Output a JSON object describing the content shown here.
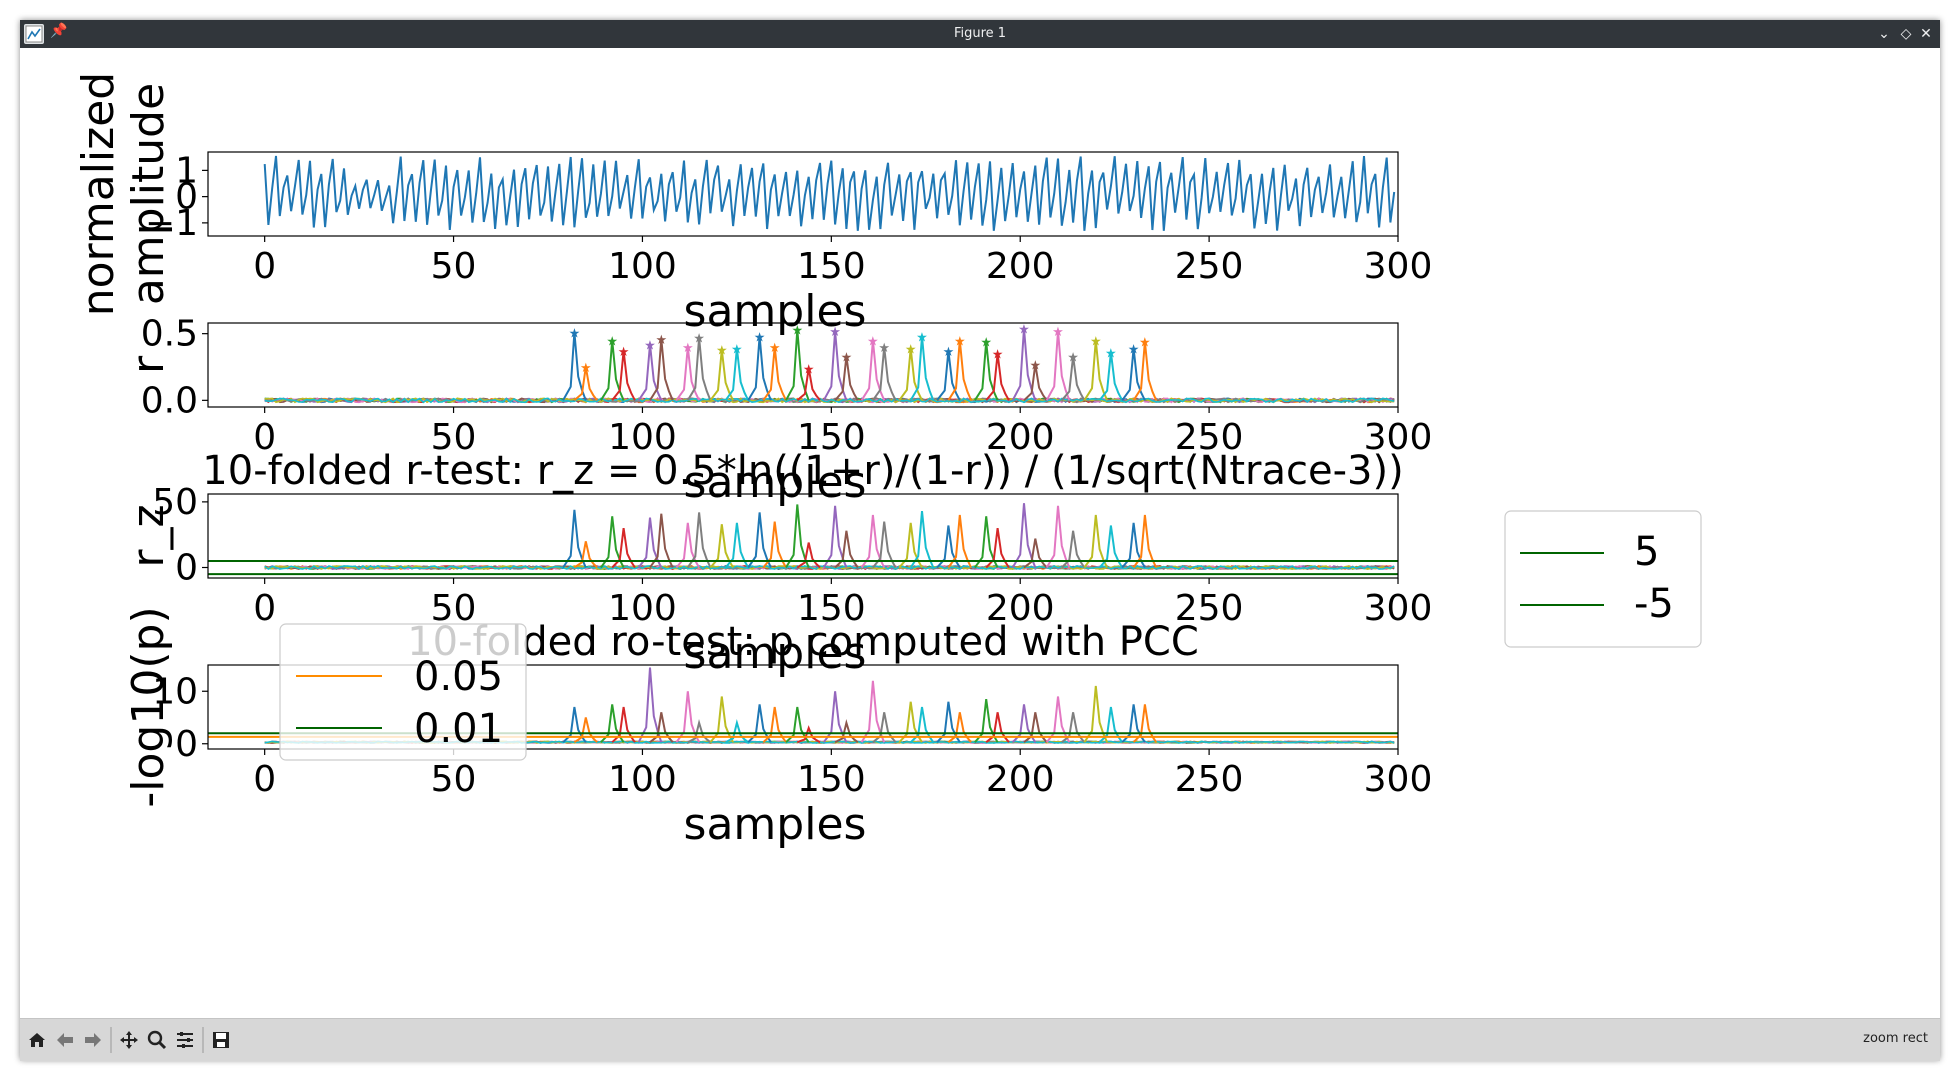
{
  "window": {
    "title": "Figure 1"
  },
  "toolbar": {
    "buttons": [
      "home-icon",
      "back-icon",
      "forward-icon",
      "pan-icon",
      "zoom-icon",
      "configure-subplots-icon",
      "save-icon"
    ],
    "status": "zoom rect"
  },
  "colors": {
    "tab": [
      "#1f77b4",
      "#ff7f0e",
      "#2ca02c",
      "#d62728",
      "#9467bd",
      "#8c564b",
      "#e377c2",
      "#7f7f7f",
      "#bcbd22",
      "#17becf"
    ],
    "threshold_green": "#006400",
    "threshold_orange": "#ff8c00"
  },
  "chart_data": [
    {
      "type": "line",
      "title": "",
      "xlabel": "samples",
      "ylabel": "normalized\namplitude",
      "xlim": [
        -15,
        300
      ],
      "ylim": [
        -1.5,
        1.7
      ],
      "xticks": [
        0,
        50,
        100,
        150,
        200,
        250,
        300
      ],
      "yticks": [
        1,
        0,
        -1
      ],
      "tick_labels_y": [
        "1",
        "0",
        "−1"
      ],
      "series": [
        {
          "values_desc": "normalized trace, 300 samples oscillating between -1.3 and 1.6"
        }
      ]
    },
    {
      "type": "line",
      "title": "",
      "xlabel": "samples",
      "ylabel": "r",
      "xlim": [
        -15,
        300
      ],
      "ylim": [
        -0.05,
        0.58
      ],
      "xticks": [
        0,
        50,
        100,
        150,
        200,
        250,
        300
      ],
      "yticks": [
        0.0,
        0.5
      ],
      "tick_labels_y": [
        "0.0",
        "0.5"
      ],
      "peaks": [
        {
          "x": 82,
          "y": 0.51
        },
        {
          "x": 85,
          "y": 0.25
        },
        {
          "x": 92,
          "y": 0.45
        },
        {
          "x": 95,
          "y": 0.37
        },
        {
          "x": 102,
          "y": 0.42
        },
        {
          "x": 105,
          "y": 0.46
        },
        {
          "x": 112,
          "y": 0.4
        },
        {
          "x": 115,
          "y": 0.47
        },
        {
          "x": 121,
          "y": 0.38
        },
        {
          "x": 125,
          "y": 0.39
        },
        {
          "x": 131,
          "y": 0.48
        },
        {
          "x": 135,
          "y": 0.4
        },
        {
          "x": 141,
          "y": 0.53
        },
        {
          "x": 144,
          "y": 0.24
        },
        {
          "x": 151,
          "y": 0.52
        },
        {
          "x": 154,
          "y": 0.33
        },
        {
          "x": 161,
          "y": 0.45
        },
        {
          "x": 164,
          "y": 0.4
        },
        {
          "x": 171,
          "y": 0.39
        },
        {
          "x": 174,
          "y": 0.48
        },
        {
          "x": 181,
          "y": 0.37
        },
        {
          "x": 184,
          "y": 0.45
        },
        {
          "x": 191,
          "y": 0.44
        },
        {
          "x": 194,
          "y": 0.35
        },
        {
          "x": 201,
          "y": 0.54
        },
        {
          "x": 204,
          "y": 0.27
        },
        {
          "x": 210,
          "y": 0.52
        },
        {
          "x": 214,
          "y": 0.33
        },
        {
          "x": 220,
          "y": 0.45
        },
        {
          "x": 224,
          "y": 0.36
        },
        {
          "x": 230,
          "y": 0.39
        },
        {
          "x": 233,
          "y": 0.44
        }
      ]
    },
    {
      "type": "line",
      "title": "10-folded r-test: r_z = 0.5*ln((1+r)/(1-r)) / (1/sqrt(Ntrace-3))",
      "xlabel": "samples",
      "ylabel": "r_z",
      "xlim": [
        -15,
        300
      ],
      "ylim": [
        -8,
        56
      ],
      "xticks": [
        0,
        50,
        100,
        150,
        200,
        250,
        300
      ],
      "yticks": [
        0,
        50
      ],
      "tick_labels_y": [
        "0",
        "50"
      ],
      "legend": {
        "placement": "right",
        "entries": [
          {
            "label": "5"
          },
          {
            "label": "-5"
          }
        ]
      },
      "thresholds": [
        5,
        -5
      ],
      "peaks": [
        {
          "x": 82,
          "y": 44
        },
        {
          "x": 85,
          "y": 20
        },
        {
          "x": 92,
          "y": 39
        },
        {
          "x": 95,
          "y": 30
        },
        {
          "x": 102,
          "y": 38
        },
        {
          "x": 105,
          "y": 41
        },
        {
          "x": 112,
          "y": 34
        },
        {
          "x": 115,
          "y": 42
        },
        {
          "x": 121,
          "y": 33
        },
        {
          "x": 125,
          "y": 34
        },
        {
          "x": 131,
          "y": 42
        },
        {
          "x": 135,
          "y": 35
        },
        {
          "x": 141,
          "y": 48
        },
        {
          "x": 144,
          "y": 19
        },
        {
          "x": 151,
          "y": 47
        },
        {
          "x": 154,
          "y": 28
        },
        {
          "x": 161,
          "y": 40
        },
        {
          "x": 164,
          "y": 35
        },
        {
          "x": 171,
          "y": 34
        },
        {
          "x": 174,
          "y": 43
        },
        {
          "x": 181,
          "y": 32
        },
        {
          "x": 184,
          "y": 40
        },
        {
          "x": 191,
          "y": 39
        },
        {
          "x": 194,
          "y": 30
        },
        {
          "x": 201,
          "y": 49
        },
        {
          "x": 204,
          "y": 22
        },
        {
          "x": 210,
          "y": 47
        },
        {
          "x": 214,
          "y": 28
        },
        {
          "x": 220,
          "y": 40
        },
        {
          "x": 224,
          "y": 32
        },
        {
          "x": 230,
          "y": 34
        },
        {
          "x": 233,
          "y": 40
        }
      ]
    },
    {
      "type": "line",
      "title": "10-folded ro-test: p computed with PCC",
      "xlabel": "samples",
      "ylabel": "-log10(p)",
      "xlim": [
        -15,
        300
      ],
      "ylim": [
        -1,
        15
      ],
      "xticks": [
        0,
        50,
        100,
        150,
        200,
        250,
        300
      ],
      "yticks": [
        0,
        10
      ],
      "tick_labels_y": [
        "0",
        "10"
      ],
      "legend": {
        "placement": "upper left",
        "entries": [
          {
            "label": "0.05"
          },
          {
            "label": "0.01"
          }
        ]
      },
      "thresholds": [
        1.3,
        2.0
      ],
      "peaks": [
        {
          "x": 82,
          "y": 7
        },
        {
          "x": 85,
          "y": 5
        },
        {
          "x": 92,
          "y": 7.5
        },
        {
          "x": 95,
          "y": 7
        },
        {
          "x": 102,
          "y": 14.5
        },
        {
          "x": 105,
          "y": 6
        },
        {
          "x": 112,
          "y": 10
        },
        {
          "x": 115,
          "y": 4
        },
        {
          "x": 121,
          "y": 9
        },
        {
          "x": 125,
          "y": 4
        },
        {
          "x": 131,
          "y": 7.5
        },
        {
          "x": 135,
          "y": 7
        },
        {
          "x": 141,
          "y": 7
        },
        {
          "x": 144,
          "y": 3
        },
        {
          "x": 151,
          "y": 10
        },
        {
          "x": 154,
          "y": 4
        },
        {
          "x": 161,
          "y": 12
        },
        {
          "x": 164,
          "y": 6
        },
        {
          "x": 171,
          "y": 8
        },
        {
          "x": 174,
          "y": 7
        },
        {
          "x": 181,
          "y": 8
        },
        {
          "x": 184,
          "y": 6
        },
        {
          "x": 191,
          "y": 8.5
        },
        {
          "x": 194,
          "y": 6
        },
        {
          "x": 201,
          "y": 7.5
        },
        {
          "x": 204,
          "y": 6
        },
        {
          "x": 210,
          "y": 9
        },
        {
          "x": 214,
          "y": 6
        },
        {
          "x": 220,
          "y": 11
        },
        {
          "x": 224,
          "y": 7
        },
        {
          "x": 230,
          "y": 7.5
        },
        {
          "x": 233,
          "y": 7.5
        }
      ]
    }
  ]
}
